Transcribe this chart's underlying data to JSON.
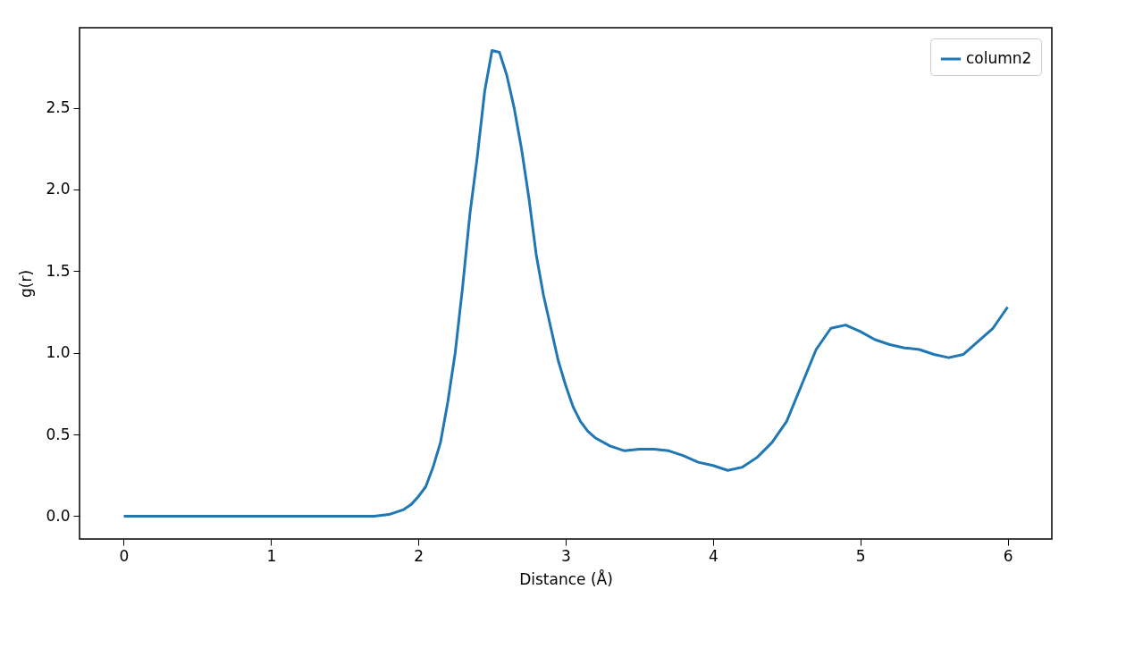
{
  "chart_data": {
    "type": "line",
    "xlabel": "Distance (Å)",
    "ylabel": "g(r)",
    "xlim": [
      -0.3,
      6.3
    ],
    "ylim": [
      -0.14,
      2.99
    ],
    "xticks": [
      0,
      1,
      2,
      3,
      4,
      5,
      6
    ],
    "yticks": [
      {
        "value": 0,
        "label": "0.0"
      },
      {
        "value": 0.5,
        "label": "0.5"
      },
      {
        "value": 1,
        "label": "1.0"
      },
      {
        "value": 1.5,
        "label": "1.5"
      },
      {
        "value": 2,
        "label": "2.0"
      },
      {
        "value": 2.5,
        "label": "2.5"
      }
    ],
    "grid": false,
    "legend": "top right",
    "marker": "none",
    "line_style": "solid",
    "x": [
      0,
      1.7,
      1.8,
      1.9,
      1.95,
      2.0,
      2.05,
      2.1,
      2.15,
      2.2,
      2.25,
      2.3,
      2.35,
      2.4,
      2.45,
      2.5,
      2.55,
      2.6,
      2.65,
      2.7,
      2.75,
      2.8,
      2.85,
      2.9,
      2.95,
      3.0,
      3.05,
      3.1,
      3.15,
      3.2,
      3.3,
      3.4,
      3.5,
      3.6,
      3.7,
      3.8,
      3.9,
      4.0,
      4.1,
      4.2,
      4.3,
      4.4,
      4.5,
      4.6,
      4.7,
      4.8,
      4.9,
      5.0,
      5.1,
      5.2,
      5.3,
      5.4,
      5.5,
      5.6,
      5.7,
      5.8,
      5.9,
      6.0
    ],
    "series": [
      {
        "name": "column2",
        "color": "#1f77b4",
        "values": [
          0,
          0,
          0.01,
          0.04,
          0.07,
          0.12,
          0.18,
          0.3,
          0.45,
          0.7,
          1.0,
          1.4,
          1.85,
          2.2,
          2.6,
          2.85,
          2.84,
          2.7,
          2.5,
          2.25,
          1.95,
          1.6,
          1.35,
          1.15,
          0.95,
          0.8,
          0.67,
          0.58,
          0.52,
          0.48,
          0.43,
          0.4,
          0.41,
          0.41,
          0.4,
          0.37,
          0.33,
          0.31,
          0.28,
          0.3,
          0.36,
          0.45,
          0.58,
          0.8,
          1.02,
          1.15,
          1.17,
          1.13,
          1.08,
          1.05,
          1.03,
          1.02,
          0.99,
          0.97,
          0.99,
          1.07,
          1.15,
          1.28
        ]
      }
    ]
  }
}
